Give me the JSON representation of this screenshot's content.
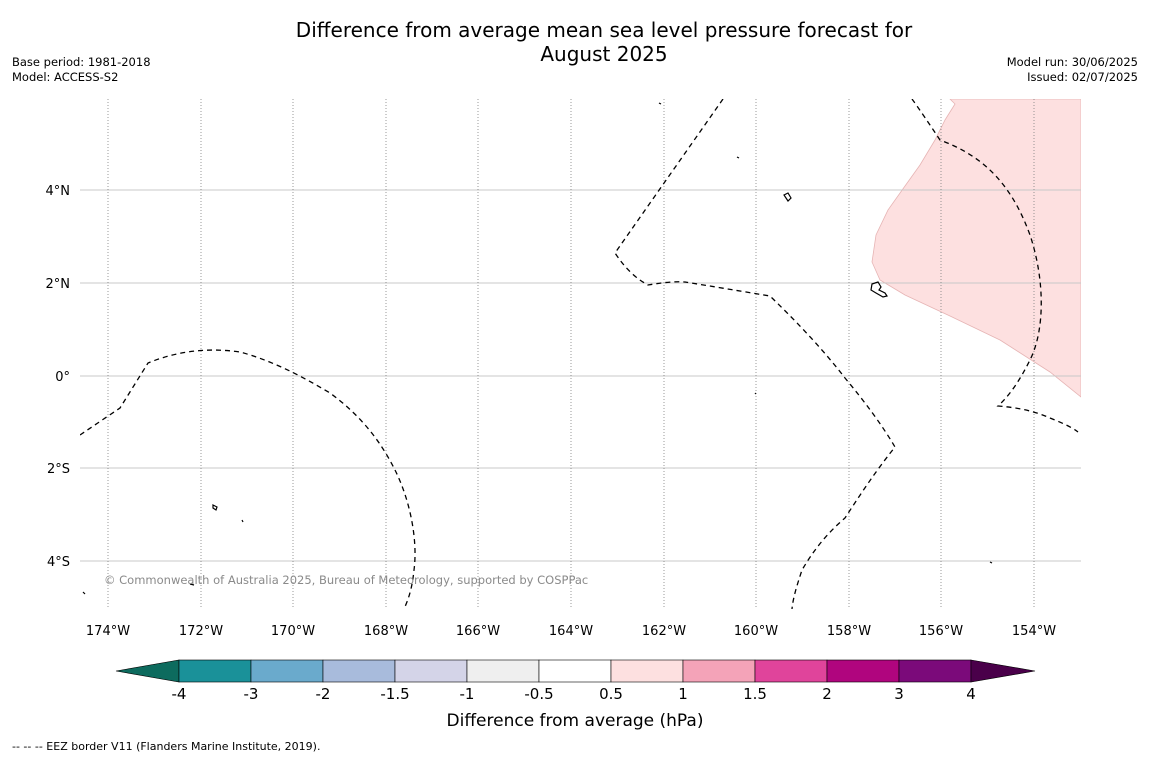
{
  "title_line1": "Difference from average mean sea level pressure forecast for",
  "title_line2": "August 2025",
  "meta_left": {
    "base_period": "Base period: 1981-2018",
    "model": "Model: ACCESS-S2"
  },
  "meta_right": {
    "model_run": "Model run: 30/06/2025",
    "issued": "Issued: 02/07/2025"
  },
  "map": {
    "lat_labels": [
      "4°N",
      "2°N",
      "0°",
      "2°S",
      "4°S"
    ],
    "lon_labels": [
      "174°W",
      "172°W",
      "170°W",
      "168°W",
      "166°W",
      "164°W",
      "162°W",
      "160°W",
      "158°W",
      "156°W",
      "154°W"
    ],
    "copyright": "© Commonwealth of Australia 2025, Bureau of Meteorology, supported by COSPPac",
    "anomaly_fill_color": "#fde0e0",
    "anomaly_category": "0.5 to 1"
  },
  "colorbar": {
    "ticks": [
      "-4",
      "-3",
      "-2",
      "-1.5",
      "-1",
      "-0.5",
      "0.5",
      "1",
      "1.5",
      "2",
      "3",
      "4"
    ],
    "colors": [
      "#0d6b5e",
      "#1a9199",
      "#6aaacc",
      "#a8bbdc",
      "#d4d4e8",
      "#efefef",
      "#ffffff",
      "#fde0e0",
      "#f4a3b8",
      "#e0449b",
      "#b0057e",
      "#7b0a7a",
      "#4a004a"
    ],
    "label": "Difference from average (hPa)"
  },
  "footer": "--  --  -- EEZ border V11 (Flanders Marine Institute, 2019)."
}
